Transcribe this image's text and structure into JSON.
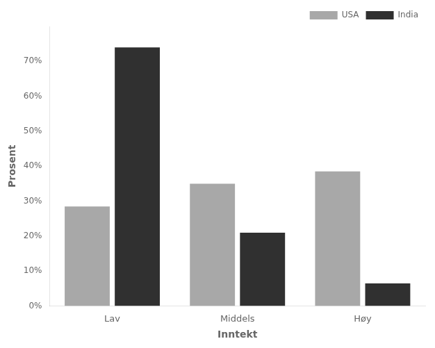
{
  "chart_data": {
    "type": "bar",
    "xlabel": "Inntekt",
    "ylabel": "Prosent",
    "categories": [
      "Lav",
      "Middels",
      "Høy"
    ],
    "series": [
      {
        "name": "USA",
        "color": "#a8a8a8",
        "values": [
          28.5,
          35,
          38.5
        ]
      },
      {
        "name": "India",
        "color": "#303030",
        "values": [
          74,
          21,
          6.5
        ]
      }
    ],
    "ylim": [
      0,
      80
    ],
    "yticks": [
      {
        "value": 0,
        "label": "0%"
      },
      {
        "value": 10,
        "label": "10%"
      },
      {
        "value": 20,
        "label": "20%"
      },
      {
        "value": 30,
        "label": "30%"
      },
      {
        "value": 40,
        "label": "40%"
      },
      {
        "value": 50,
        "label": "50%"
      },
      {
        "value": 60,
        "label": "60%"
      },
      {
        "value": 70,
        "label": "70%"
      }
    ],
    "grid": false,
    "legend": "upper right"
  }
}
